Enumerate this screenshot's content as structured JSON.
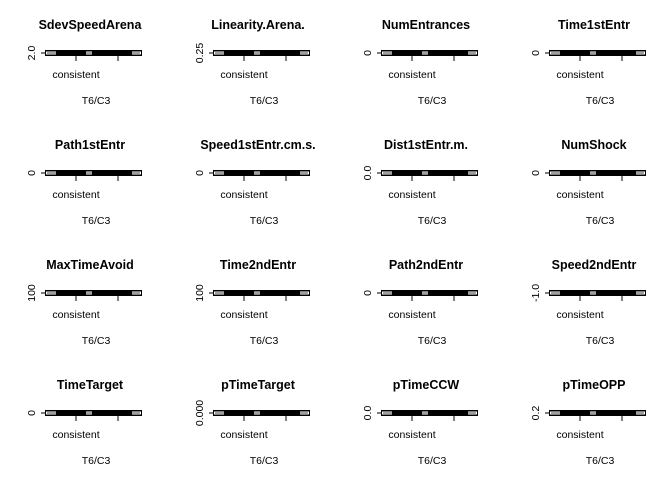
{
  "chart_data": {
    "type": "box",
    "layout": {
      "rows": 4,
      "cols": 4
    },
    "panels": [
      {
        "title": "SdevSpeedArena",
        "ytick": "2.0",
        "category": "consistent",
        "xlabel": "T6/C3"
      },
      {
        "title": "Linearity.Arena.",
        "ytick": "0.25",
        "category": "consistent",
        "xlabel": "T6/C3"
      },
      {
        "title": "NumEntrances",
        "ytick": "0",
        "category": "consistent",
        "xlabel": "T6/C3"
      },
      {
        "title": "Time1stEntr",
        "ytick": "0",
        "category": "consistent",
        "xlabel": "T6/C3"
      },
      {
        "title": "Path1stEntr",
        "ytick": "0",
        "category": "consistent",
        "xlabel": "T6/C3"
      },
      {
        "title": "Speed1stEntr.cm.s.",
        "ytick": "0",
        "category": "consistent",
        "xlabel": "T6/C3"
      },
      {
        "title": "Dist1stEntr.m.",
        "ytick": "0.0",
        "category": "consistent",
        "xlabel": "T6/C3"
      },
      {
        "title": "NumShock",
        "ytick": "0",
        "category": "consistent",
        "xlabel": "T6/C3"
      },
      {
        "title": "MaxTimeAvoid",
        "ytick": "100",
        "category": "consistent",
        "xlabel": "T6/C3"
      },
      {
        "title": "Time2ndEntr",
        "ytick": "100",
        "category": "consistent",
        "xlabel": "T6/C3"
      },
      {
        "title": "Path2ndEntr",
        "ytick": "0",
        "category": "consistent",
        "xlabel": "T6/C3"
      },
      {
        "title": "Speed2ndEntr",
        "ytick": "-1.0",
        "category": "consistent",
        "xlabel": "T6/C3"
      },
      {
        "title": "TimeTarget",
        "ytick": "0",
        "category": "consistent",
        "xlabel": "T6/C3"
      },
      {
        "title": "pTimeTarget",
        "ytick": "0.000",
        "category": "consistent",
        "xlabel": "T6/C3"
      },
      {
        "title": "pTimeCCW",
        "ytick": "0.0",
        "category": "consistent",
        "xlabel": "T6/C3"
      },
      {
        "title": "pTimeOPP",
        "ytick": "0.2",
        "category": "consistent",
        "xlabel": "T6/C3"
      }
    ]
  }
}
